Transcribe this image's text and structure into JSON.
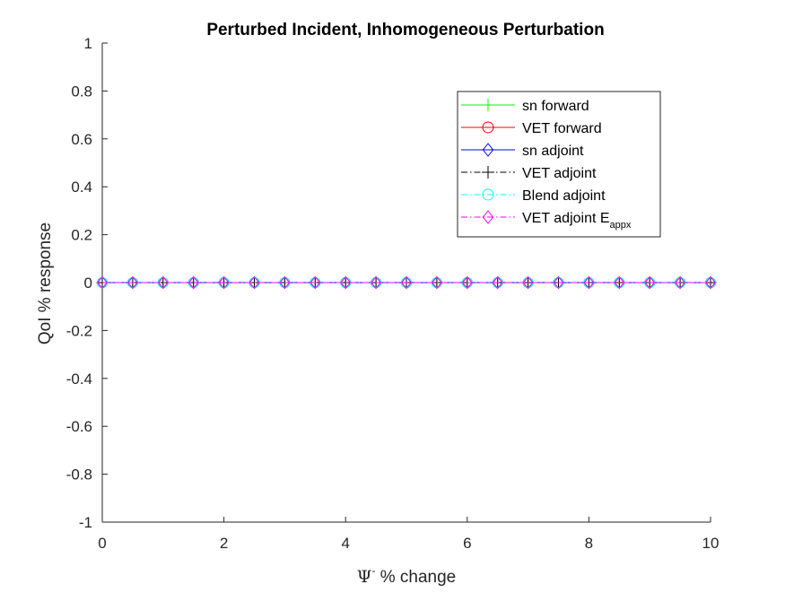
{
  "chart_data": {
    "type": "line",
    "title": "Perturbed Incident, Inhomogeneous Perturbation",
    "xlabel": {
      "symbol": "Ψ",
      "superscript": "-",
      "rest": " % change"
    },
    "ylabel": "QoI % response",
    "xlim": [
      0,
      10
    ],
    "ylim": [
      -1,
      1
    ],
    "xticks": [
      0,
      2,
      4,
      6,
      8,
      10
    ],
    "xtick_labels": [
      "0",
      "2",
      "4",
      "6",
      "8",
      "10"
    ],
    "yticks": [
      -1,
      -0.8,
      -0.6,
      -0.4,
      -0.2,
      0,
      0.2,
      0.4,
      0.6,
      0.8,
      1
    ],
    "ytick_labels": [
      "-1",
      "-0.8",
      "-0.6",
      "-0.4",
      "-0.2",
      "0",
      "0.2",
      "0.4",
      "0.6",
      "0.8",
      "1"
    ],
    "grid": false,
    "legend_position": "top-right",
    "x": [
      0,
      0.5,
      1,
      1.5,
      2,
      2.5,
      3,
      3.5,
      4,
      4.5,
      5,
      5.5,
      6,
      6.5,
      7,
      7.5,
      8,
      8.5,
      9,
      9.5,
      10
    ],
    "series": [
      {
        "name": "sn forward",
        "label_main": "sn forward",
        "label_sub": "",
        "color": "#00ff00",
        "dash": "solid",
        "marker": "plus",
        "values": [
          0,
          0,
          0,
          0,
          0,
          0,
          0,
          0,
          0,
          0,
          0,
          0,
          0,
          0,
          0,
          0,
          0,
          0,
          0,
          0,
          0
        ]
      },
      {
        "name": "VET forward",
        "label_main": "VET forward",
        "label_sub": "",
        "color": "#ff0000",
        "dash": "solid",
        "marker": "circle",
        "values": [
          0,
          0,
          0,
          0,
          0,
          0,
          0,
          0,
          0,
          0,
          0,
          0,
          0,
          0,
          0,
          0,
          0,
          0,
          0,
          0,
          0
        ]
      },
      {
        "name": "sn adjoint",
        "label_main": "sn adjoint",
        "label_sub": "",
        "color": "#0000ff",
        "dash": "solid",
        "marker": "diamond",
        "values": [
          0,
          0,
          0,
          0,
          0,
          0,
          0,
          0,
          0,
          0,
          0,
          0,
          0,
          0,
          0,
          0,
          0,
          0,
          0,
          0,
          0
        ]
      },
      {
        "name": "VET adjoint",
        "label_main": "VET adjoint",
        "label_sub": "",
        "color": "#000000",
        "dash": "dashdot",
        "marker": "plus",
        "values": [
          0,
          0,
          0,
          0,
          0,
          0,
          0,
          0,
          0,
          0,
          0,
          0,
          0,
          0,
          0,
          0,
          0,
          0,
          0,
          0,
          0
        ]
      },
      {
        "name": "Blend adjoint",
        "label_main": "Blend adjoint",
        "label_sub": "",
        "color": "#00ffff",
        "dash": "dashdot",
        "marker": "circle",
        "values": [
          0,
          0,
          0,
          0,
          0,
          0,
          0,
          0,
          0,
          0,
          0,
          0,
          0,
          0,
          0,
          0,
          0,
          0,
          0,
          0,
          0
        ]
      },
      {
        "name": "VET adjoint E_appx",
        "label_main": "VET adjoint E",
        "label_sub": "appx",
        "color": "#ff00ff",
        "dash": "dashdot",
        "marker": "diamond",
        "values": [
          0,
          0,
          0,
          0,
          0,
          0,
          0,
          0,
          0,
          0,
          0,
          0,
          0,
          0,
          0,
          0,
          0,
          0,
          0,
          0,
          0
        ]
      }
    ]
  }
}
